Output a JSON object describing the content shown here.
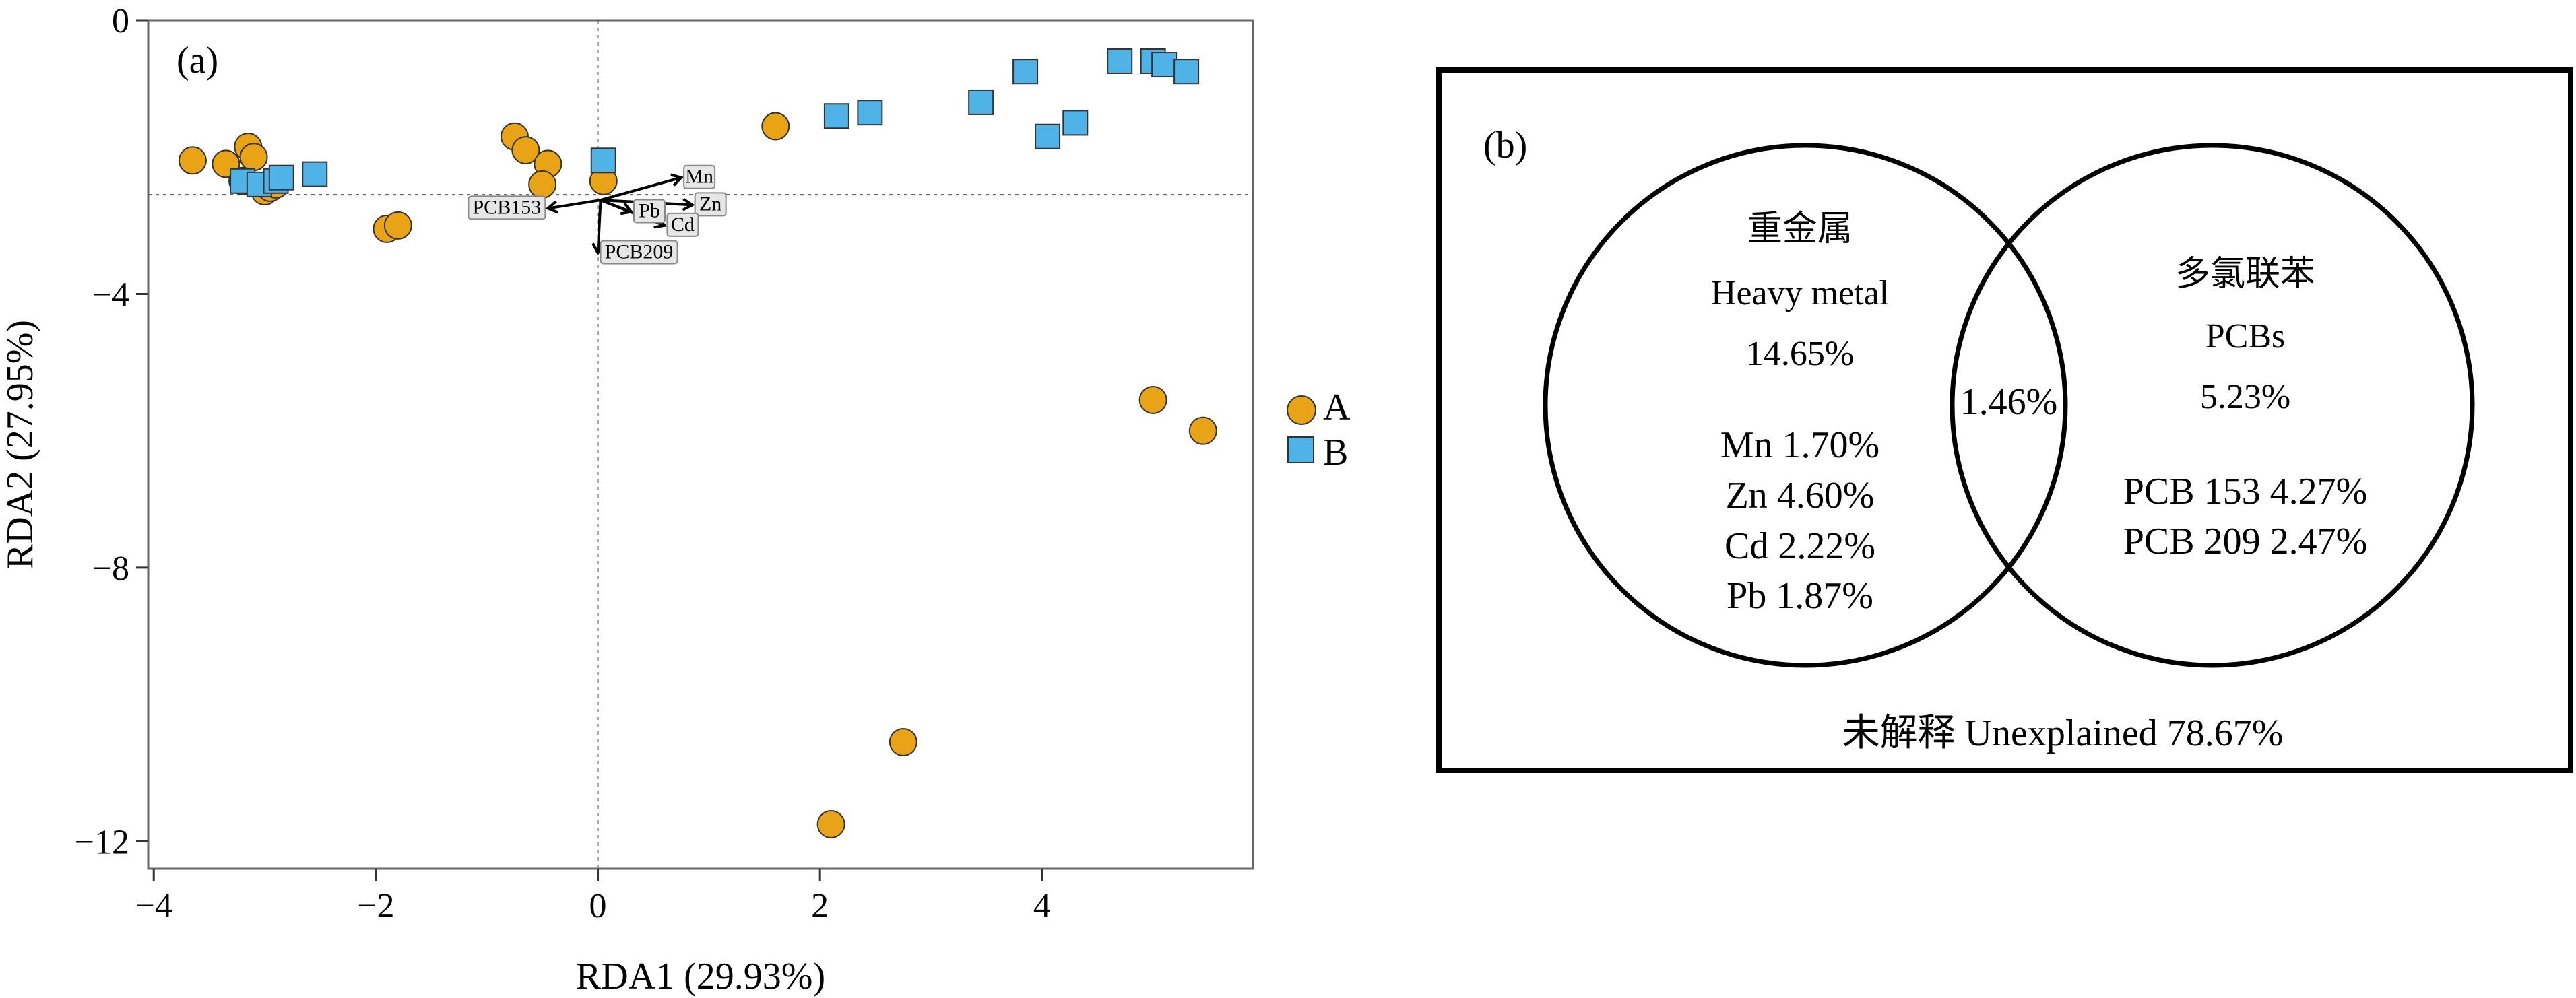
{
  "chart_data": [
    {
      "type": "scatter",
      "panel_tag": "(a)",
      "xlabel": "RDA1 (29.93%)",
      "ylabel": "RDA2 (27.95%)",
      "xlim": [
        -4.05,
        5.9
      ],
      "ylim": [
        -12.4,
        0
      ],
      "xticks": [
        -4,
        -2,
        0,
        2,
        4
      ],
      "yticks": [
        0,
        -4,
        -8,
        -12
      ],
      "xtick_labels": [
        "−4",
        "−2",
        "0",
        "2",
        "4"
      ],
      "ytick_labels": [
        "0",
        "−4",
        "−8",
        "−12"
      ],
      "reference_lines": {
        "x": 0,
        "y": -2.55
      },
      "legend_position": "right",
      "colors": {
        "A": "#E8A317",
        "B": "#4FB3E8",
        "outline": "#333333"
      },
      "series": [
        {
          "name": "A",
          "marker": "circle",
          "points": [
            [
              -3.65,
              -2.05
            ],
            [
              -3.35,
              -2.1
            ],
            [
              -3.15,
              -1.85
            ],
            [
              -3.1,
              -2.0
            ],
            [
              -3.2,
              -2.35
            ],
            [
              -3.0,
              -2.5
            ],
            [
              -2.95,
              -2.45
            ],
            [
              -2.9,
              -2.4
            ],
            [
              -1.9,
              -3.05
            ],
            [
              -1.8,
              -3.0
            ],
            [
              -0.75,
              -1.7
            ],
            [
              -0.65,
              -1.9
            ],
            [
              -0.45,
              -2.1
            ],
            [
              -0.5,
              -2.4
            ],
            [
              0.05,
              -2.35
            ],
            [
              1.6,
              -1.55
            ],
            [
              5.0,
              -5.55
            ],
            [
              5.45,
              -6.0
            ],
            [
              2.75,
              -10.55
            ],
            [
              2.1,
              -11.75
            ]
          ]
        },
        {
          "name": "B",
          "marker": "square",
          "points": [
            [
              -3.2,
              -2.35
            ],
            [
              -3.05,
              -2.4
            ],
            [
              -2.9,
              -2.35
            ],
            [
              -2.85,
              -2.3
            ],
            [
              -2.55,
              -2.25
            ],
            [
              0.05,
              -2.05
            ],
            [
              2.15,
              -1.4
            ],
            [
              2.45,
              -1.35
            ],
            [
              3.45,
              -1.2
            ],
            [
              3.85,
              -0.75
            ],
            [
              4.05,
              -1.7
            ],
            [
              4.3,
              -1.5
            ],
            [
              4.7,
              -0.6
            ],
            [
              5.0,
              -0.6
            ],
            [
              5.1,
              -0.65
            ],
            [
              5.3,
              -0.75
            ]
          ]
        }
      ],
      "vectors": [
        {
          "label": "Mn",
          "x": 0.75,
          "y": -2.3
        },
        {
          "label": "Zn",
          "x": 0.85,
          "y": -2.7
        },
        {
          "label": "Cd",
          "x": 0.6,
          "y": -3.0
        },
        {
          "label": "Pb",
          "x": 0.3,
          "y": -2.8
        },
        {
          "label": "PCB153",
          "x": -0.45,
          "y": -2.75
        },
        {
          "label": "PCB209",
          "x": 0.0,
          "y": -3.4
        }
      ]
    },
    {
      "type": "venn",
      "panel_tag": "(b)",
      "left": {
        "title_zh": "重金属",
        "title_en": "Heavy metal",
        "total": "14.65%",
        "items": [
          "Mn 1.70%",
          "Zn 4.60%",
          "Cd 2.22%",
          "Pb 1.87%"
        ]
      },
      "right": {
        "title_zh": "多氯联苯",
        "title_en": "PCBs",
        "total": "5.23%",
        "items": [
          "PCB 153 4.27%",
          "PCB 209 2.47%"
        ]
      },
      "overlap": "1.46%",
      "unexplained": "未解释 Unexplained 78.67%"
    }
  ]
}
